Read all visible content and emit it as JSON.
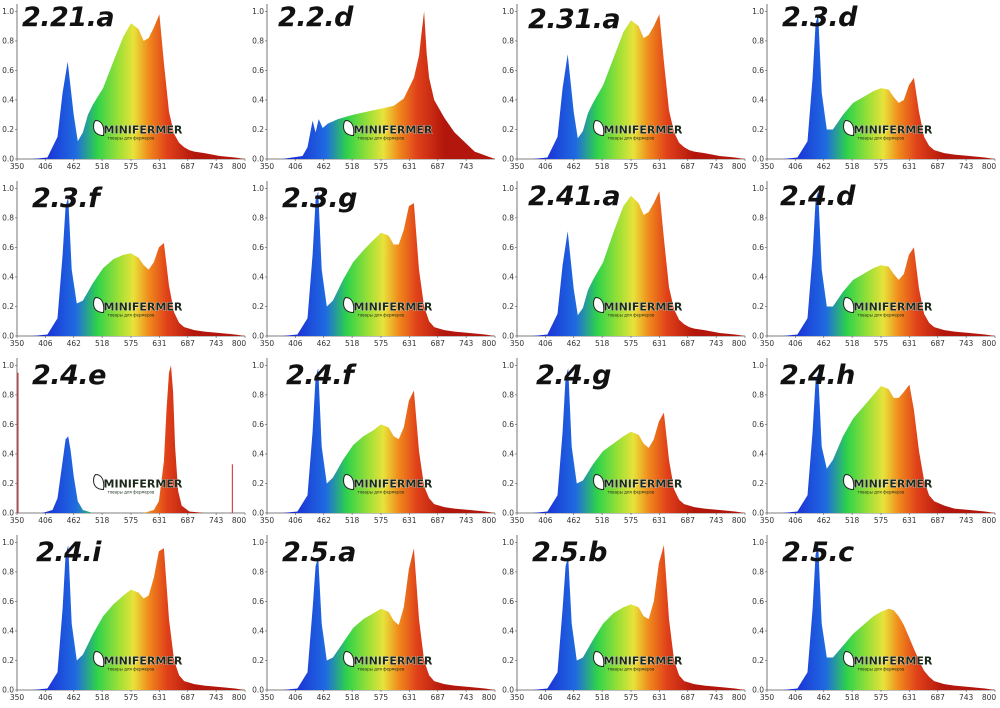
{
  "panel_labels": [
    "2.21.a",
    "2.2.d",
    "2.31.a",
    "2.3.d",
    "2.3.f",
    "2.3.g",
    "2.41.a",
    "2.4.d",
    "2.4.e",
    "2.4.f",
    "2.4.g",
    "2.4.h",
    "2.4.i",
    "2.5.a",
    "2.5.b",
    "2.5.c"
  ],
  "watermark": {
    "text": "MINIFERMER",
    "tagline": "товары для фермеров"
  },
  "colors": {
    "gradient_start": "#1a2bd6",
    "gradient_mid": "#2fd24a",
    "gradient_yellow": "#e8e23a",
    "gradient_end": "#b3160c",
    "marker": "#d62020"
  },
  "chart_data": [
    {
      "type": "area",
      "title": "2.21.a",
      "x_ticks": [
        350,
        406,
        462,
        518,
        575,
        631,
        687,
        743,
        800
      ],
      "y_ticks": [
        0.0,
        0.2,
        0.4,
        0.6,
        0.8,
        1.0
      ],
      "xlim": [
        350,
        800
      ],
      "ylim": [
        0,
        1.05
      ],
      "x": [
        380,
        410,
        430,
        440,
        450,
        462,
        470,
        480,
        490,
        500,
        520,
        540,
        560,
        575,
        590,
        600,
        610,
        620,
        631,
        640,
        650,
        660,
        670,
        680,
        690,
        700,
        720,
        750,
        780,
        800
      ],
      "y": [
        0,
        0.01,
        0.15,
        0.45,
        0.66,
        0.3,
        0.12,
        0.18,
        0.3,
        0.37,
        0.48,
        0.66,
        0.83,
        0.92,
        0.88,
        0.8,
        0.82,
        0.89,
        0.98,
        0.65,
        0.32,
        0.17,
        0.11,
        0.08,
        0.06,
        0.05,
        0.04,
        0.02,
        0.01,
        0
      ]
    },
    {
      "type": "area",
      "title": "2.2.d",
      "x_ticks": [
        350,
        406,
        462,
        518,
        575,
        631,
        687,
        743
      ],
      "y_ticks": [
        0.0,
        0.2,
        0.4,
        0.6,
        0.8,
        1.0
      ],
      "xlim": [
        350,
        800
      ],
      "ylim": [
        0,
        1.05
      ],
      "x": [
        380,
        420,
        430,
        440,
        446,
        452,
        460,
        470,
        490,
        520,
        560,
        600,
        620,
        640,
        650,
        655,
        660,
        665,
        670,
        680,
        700,
        720,
        760,
        800
      ],
      "y": [
        0,
        0.02,
        0.08,
        0.26,
        0.18,
        0.27,
        0.21,
        0.24,
        0.27,
        0.3,
        0.33,
        0.36,
        0.41,
        0.55,
        0.7,
        0.85,
        1.0,
        0.72,
        0.55,
        0.4,
        0.28,
        0.18,
        0.05,
        0
      ]
    },
    {
      "type": "area",
      "title": "2.31.a",
      "x_ticks": [
        350,
        406,
        462,
        518,
        575,
        631,
        687,
        743,
        800
      ],
      "y_ticks": [
        0.0,
        0.2,
        0.4,
        0.6,
        0.8,
        1.0
      ],
      "xlim": [
        350,
        800
      ],
      "ylim": [
        0,
        1.05
      ],
      "x": [
        380,
        410,
        430,
        440,
        450,
        462,
        470,
        480,
        490,
        500,
        520,
        540,
        560,
        575,
        590,
        600,
        610,
        620,
        631,
        640,
        650,
        660,
        670,
        680,
        690,
        700,
        720,
        750,
        780,
        800
      ],
      "y": [
        0,
        0.01,
        0.15,
        0.48,
        0.71,
        0.32,
        0.14,
        0.19,
        0.31,
        0.38,
        0.5,
        0.68,
        0.86,
        0.94,
        0.9,
        0.82,
        0.84,
        0.9,
        0.98,
        0.66,
        0.33,
        0.18,
        0.11,
        0.08,
        0.06,
        0.05,
        0.04,
        0.02,
        0.01,
        0
      ]
    },
    {
      "type": "area",
      "title": "2.3.d",
      "x_ticks": [
        350,
        406,
        462,
        518,
        575,
        631,
        687,
        743,
        800
      ],
      "y_ticks": [
        0.0,
        0.2,
        0.4,
        0.6,
        0.8,
        1.0
      ],
      "xlim": [
        350,
        800
      ],
      "ylim": [
        0,
        1.05
      ],
      "x": [
        380,
        410,
        430,
        440,
        446,
        451,
        458,
        468,
        480,
        500,
        520,
        540,
        560,
        575,
        590,
        600,
        610,
        620,
        630,
        640,
        650,
        660,
        670,
        680,
        700,
        720,
        750,
        780,
        800
      ],
      "y": [
        0,
        0.01,
        0.12,
        0.55,
        0.92,
        0.98,
        0.45,
        0.2,
        0.2,
        0.3,
        0.38,
        0.42,
        0.46,
        0.48,
        0.47,
        0.42,
        0.38,
        0.4,
        0.5,
        0.55,
        0.32,
        0.15,
        0.09,
        0.06,
        0.04,
        0.03,
        0.02,
        0.01,
        0
      ]
    },
    {
      "type": "area",
      "title": "2.3.f",
      "x_ticks": [
        350,
        406,
        462,
        518,
        575,
        631,
        687,
        743,
        800
      ],
      "y_ticks": [
        0.0,
        0.2,
        0.4,
        0.6,
        0.8,
        1.0
      ],
      "xlim": [
        350,
        800
      ],
      "ylim": [
        0,
        1.05
      ],
      "x": [
        380,
        410,
        430,
        440,
        446,
        451,
        458,
        468,
        480,
        500,
        520,
        540,
        560,
        575,
        590,
        600,
        610,
        620,
        630,
        640,
        650,
        660,
        670,
        680,
        700,
        720,
        750,
        780,
        800
      ],
      "y": [
        0,
        0.01,
        0.12,
        0.55,
        0.88,
        0.94,
        0.45,
        0.22,
        0.24,
        0.36,
        0.46,
        0.52,
        0.55,
        0.56,
        0.53,
        0.48,
        0.45,
        0.5,
        0.6,
        0.63,
        0.34,
        0.16,
        0.09,
        0.06,
        0.04,
        0.03,
        0.02,
        0.01,
        0
      ]
    },
    {
      "type": "area",
      "title": "2.3.g",
      "x_ticks": [
        350,
        406,
        462,
        518,
        575,
        631,
        687,
        743,
        800
      ],
      "y_ticks": [
        0.0,
        0.2,
        0.4,
        0.6,
        0.8,
        1.0
      ],
      "xlim": [
        350,
        800
      ],
      "ylim": [
        0,
        1.05
      ],
      "x": [
        380,
        410,
        430,
        440,
        446,
        451,
        458,
        468,
        480,
        500,
        520,
        540,
        560,
        575,
        590,
        600,
        610,
        620,
        630,
        640,
        650,
        660,
        670,
        680,
        700,
        720,
        750,
        780,
        800
      ],
      "y": [
        0,
        0.01,
        0.12,
        0.55,
        0.92,
        0.98,
        0.45,
        0.2,
        0.24,
        0.38,
        0.5,
        0.58,
        0.65,
        0.7,
        0.68,
        0.62,
        0.62,
        0.72,
        0.88,
        0.9,
        0.45,
        0.2,
        0.1,
        0.06,
        0.04,
        0.03,
        0.02,
        0.01,
        0
      ]
    },
    {
      "type": "area",
      "title": "2.41.a",
      "x_ticks": [
        350,
        406,
        462,
        518,
        575,
        631,
        687,
        743,
        800
      ],
      "y_ticks": [
        0.0,
        0.2,
        0.4,
        0.6,
        0.8,
        1.0
      ],
      "xlim": [
        350,
        800
      ],
      "ylim": [
        0,
        1.05
      ],
      "x": [
        380,
        410,
        430,
        440,
        450,
        462,
        470,
        480,
        490,
        500,
        520,
        540,
        560,
        575,
        590,
        600,
        610,
        620,
        631,
        640,
        650,
        660,
        670,
        680,
        690,
        700,
        720,
        750,
        780,
        800
      ],
      "y": [
        0,
        0.01,
        0.15,
        0.48,
        0.71,
        0.32,
        0.14,
        0.19,
        0.31,
        0.38,
        0.5,
        0.7,
        0.88,
        0.95,
        0.9,
        0.82,
        0.84,
        0.9,
        0.98,
        0.66,
        0.33,
        0.18,
        0.11,
        0.08,
        0.06,
        0.05,
        0.04,
        0.02,
        0.01,
        0
      ]
    },
    {
      "type": "area",
      "title": "2.4.d",
      "x_ticks": [
        350,
        406,
        462,
        518,
        575,
        631,
        687,
        743,
        800
      ],
      "y_ticks": [
        0.0,
        0.2,
        0.4,
        0.6,
        0.8,
        1.0
      ],
      "xlim": [
        350,
        800
      ],
      "ylim": [
        0,
        1.05
      ],
      "x": [
        380,
        410,
        430,
        440,
        446,
        451,
        458,
        468,
        480,
        500,
        520,
        540,
        560,
        575,
        590,
        600,
        610,
        620,
        630,
        640,
        650,
        660,
        670,
        680,
        700,
        720,
        750,
        780,
        800
      ],
      "y": [
        0,
        0.01,
        0.12,
        0.55,
        0.92,
        0.98,
        0.45,
        0.2,
        0.2,
        0.3,
        0.38,
        0.42,
        0.46,
        0.48,
        0.47,
        0.42,
        0.38,
        0.42,
        0.55,
        0.6,
        0.32,
        0.15,
        0.09,
        0.06,
        0.04,
        0.03,
        0.02,
        0.01,
        0
      ]
    },
    {
      "type": "area",
      "title": "2.4.e",
      "x_ticks": [
        350,
        406,
        462,
        518,
        575,
        631,
        687,
        743,
        800
      ],
      "y_ticks": [
        0.0,
        0.2,
        0.4,
        0.6,
        0.8,
        1.0
      ],
      "xlim": [
        350,
        800
      ],
      "ylim": [
        0,
        1.05
      ],
      "x": [
        400,
        420,
        430,
        440,
        446,
        451,
        456,
        462,
        470,
        480,
        500,
        600,
        620,
        630,
        640,
        645,
        650,
        654,
        658,
        662,
        668,
        675,
        690,
        720
      ],
      "y": [
        0,
        0.02,
        0.1,
        0.35,
        0.5,
        0.52,
        0.42,
        0.25,
        0.08,
        0.02,
        0,
        0,
        0.02,
        0.08,
        0.35,
        0.7,
        0.95,
        1.0,
        0.82,
        0.45,
        0.15,
        0.05,
        0.01,
        0
      ]
    },
    {
      "type": "area",
      "title": "2.4.f",
      "x_ticks": [
        350,
        406,
        462,
        518,
        575,
        631,
        687,
        743,
        800
      ],
      "y_ticks": [
        0.0,
        0.2,
        0.4,
        0.6,
        0.8,
        1.0
      ],
      "xlim": [
        350,
        800
      ],
      "ylim": [
        0,
        1.05
      ],
      "x": [
        380,
        410,
        430,
        440,
        446,
        451,
        458,
        468,
        480,
        500,
        520,
        540,
        560,
        575,
        590,
        600,
        610,
        620,
        630,
        640,
        650,
        660,
        670,
        680,
        700,
        720,
        750,
        780,
        800
      ],
      "y": [
        0,
        0.01,
        0.12,
        0.55,
        0.92,
        0.98,
        0.45,
        0.2,
        0.24,
        0.36,
        0.46,
        0.52,
        0.56,
        0.6,
        0.58,
        0.52,
        0.5,
        0.58,
        0.76,
        0.83,
        0.42,
        0.18,
        0.1,
        0.06,
        0.04,
        0.03,
        0.02,
        0.01,
        0
      ]
    },
    {
      "type": "area",
      "title": "2.4.g",
      "x_ticks": [
        350,
        406,
        462,
        518,
        575,
        631,
        687,
        743,
        800
      ],
      "y_ticks": [
        0.0,
        0.2,
        0.4,
        0.6,
        0.8,
        1.0
      ],
      "xlim": [
        350,
        800
      ],
      "ylim": [
        0,
        1.05
      ],
      "x": [
        380,
        410,
        430,
        440,
        446,
        451,
        458,
        468,
        480,
        500,
        520,
        540,
        560,
        575,
        590,
        600,
        610,
        620,
        630,
        640,
        650,
        660,
        670,
        680,
        700,
        720,
        750,
        780,
        800
      ],
      "y": [
        0,
        0.01,
        0.12,
        0.55,
        0.92,
        0.98,
        0.45,
        0.2,
        0.22,
        0.33,
        0.42,
        0.47,
        0.52,
        0.55,
        0.53,
        0.47,
        0.44,
        0.5,
        0.62,
        0.68,
        0.36,
        0.16,
        0.09,
        0.06,
        0.04,
        0.03,
        0.02,
        0.01,
        0
      ]
    },
    {
      "type": "area",
      "title": "2.4.h",
      "x_ticks": [
        350,
        406,
        462,
        518,
        575,
        631,
        687,
        743,
        800
      ],
      "y_ticks": [
        0.0,
        0.2,
        0.4,
        0.6,
        0.8,
        1.0
      ],
      "xlim": [
        350,
        800
      ],
      "ylim": [
        0,
        1.05
      ],
      "x": [
        380,
        410,
        430,
        440,
        446,
        451,
        458,
        468,
        480,
        500,
        520,
        540,
        560,
        575,
        590,
        600,
        610,
        620,
        631,
        640,
        650,
        660,
        670,
        680,
        700,
        720,
        750,
        780,
        800
      ],
      "y": [
        0,
        0.01,
        0.12,
        0.55,
        0.9,
        0.95,
        0.45,
        0.3,
        0.36,
        0.52,
        0.64,
        0.72,
        0.8,
        0.86,
        0.84,
        0.78,
        0.78,
        0.82,
        0.87,
        0.7,
        0.42,
        0.22,
        0.12,
        0.08,
        0.05,
        0.03,
        0.02,
        0.01,
        0
      ]
    },
    {
      "type": "area",
      "title": "2.4.i",
      "x_ticks": [
        350,
        406,
        462,
        518,
        575,
        631,
        687,
        743,
        800
      ],
      "y_ticks": [
        0.0,
        0.2,
        0.4,
        0.6,
        0.8,
        1.0
      ],
      "xlim": [
        350,
        800
      ],
      "ylim": [
        0,
        1.05
      ],
      "x": [
        380,
        410,
        430,
        440,
        446,
        451,
        458,
        468,
        480,
        500,
        520,
        540,
        560,
        575,
        590,
        600,
        610,
        620,
        630,
        640,
        650,
        660,
        670,
        680,
        700,
        720,
        750,
        780,
        800
      ],
      "y": [
        0,
        0.01,
        0.12,
        0.55,
        0.92,
        0.98,
        0.45,
        0.2,
        0.24,
        0.38,
        0.5,
        0.58,
        0.64,
        0.68,
        0.66,
        0.62,
        0.64,
        0.76,
        0.94,
        0.96,
        0.48,
        0.2,
        0.1,
        0.06,
        0.04,
        0.03,
        0.02,
        0.01,
        0
      ]
    },
    {
      "type": "area",
      "title": "2.5.a",
      "x_ticks": [
        350,
        406,
        462,
        518,
        575,
        631,
        687,
        743,
        800
      ],
      "y_ticks": [
        0.0,
        0.2,
        0.4,
        0.6,
        0.8,
        1.0
      ],
      "xlim": [
        350,
        800
      ],
      "ylim": [
        0,
        1.05
      ],
      "x": [
        380,
        410,
        430,
        440,
        446,
        451,
        458,
        468,
        480,
        500,
        520,
        540,
        560,
        575,
        590,
        600,
        610,
        620,
        630,
        640,
        650,
        660,
        670,
        680,
        700,
        720,
        750,
        780,
        800
      ],
      "y": [
        0,
        0.01,
        0.12,
        0.55,
        0.84,
        0.9,
        0.45,
        0.2,
        0.22,
        0.32,
        0.42,
        0.48,
        0.52,
        0.55,
        0.53,
        0.47,
        0.44,
        0.56,
        0.82,
        0.96,
        0.48,
        0.2,
        0.1,
        0.06,
        0.04,
        0.03,
        0.02,
        0.01,
        0
      ]
    },
    {
      "type": "area",
      "title": "2.5.b",
      "x_ticks": [
        350,
        406,
        462,
        518,
        575,
        631,
        687,
        743,
        800
      ],
      "y_ticks": [
        0.0,
        0.2,
        0.4,
        0.6,
        0.8,
        1.0
      ],
      "xlim": [
        350,
        800
      ],
      "ylim": [
        0,
        1.05
      ],
      "x": [
        380,
        410,
        430,
        440,
        446,
        451,
        458,
        468,
        480,
        500,
        520,
        540,
        560,
        575,
        590,
        600,
        610,
        620,
        630,
        640,
        650,
        660,
        670,
        680,
        700,
        720,
        750,
        780,
        800
      ],
      "y": [
        0,
        0.01,
        0.12,
        0.55,
        0.84,
        0.9,
        0.45,
        0.2,
        0.22,
        0.34,
        0.45,
        0.52,
        0.56,
        0.58,
        0.56,
        0.5,
        0.48,
        0.6,
        0.86,
        0.98,
        0.48,
        0.2,
        0.1,
        0.06,
        0.04,
        0.03,
        0.02,
        0.01,
        0
      ]
    },
    {
      "type": "area",
      "title": "2.5.c",
      "x_ticks": [
        350,
        406,
        462,
        518,
        575,
        631,
        687,
        743,
        800
      ],
      "y_ticks": [
        0.0,
        0.2,
        0.4,
        0.6,
        0.8,
        1.0
      ],
      "xlim": [
        350,
        800
      ],
      "ylim": [
        0,
        1.05
      ],
      "x": [
        380,
        410,
        430,
        440,
        446,
        451,
        458,
        468,
        480,
        500,
        520,
        540,
        560,
        575,
        590,
        600,
        610,
        620,
        630,
        640,
        650,
        660,
        670,
        680,
        700,
        720,
        750,
        780,
        800
      ],
      "y": [
        0,
        0.01,
        0.12,
        0.55,
        0.92,
        0.98,
        0.45,
        0.22,
        0.22,
        0.3,
        0.38,
        0.44,
        0.5,
        0.53,
        0.55,
        0.54,
        0.5,
        0.44,
        0.36,
        0.28,
        0.2,
        0.13,
        0.09,
        0.06,
        0.04,
        0.03,
        0.02,
        0.01,
        0
      ]
    }
  ]
}
